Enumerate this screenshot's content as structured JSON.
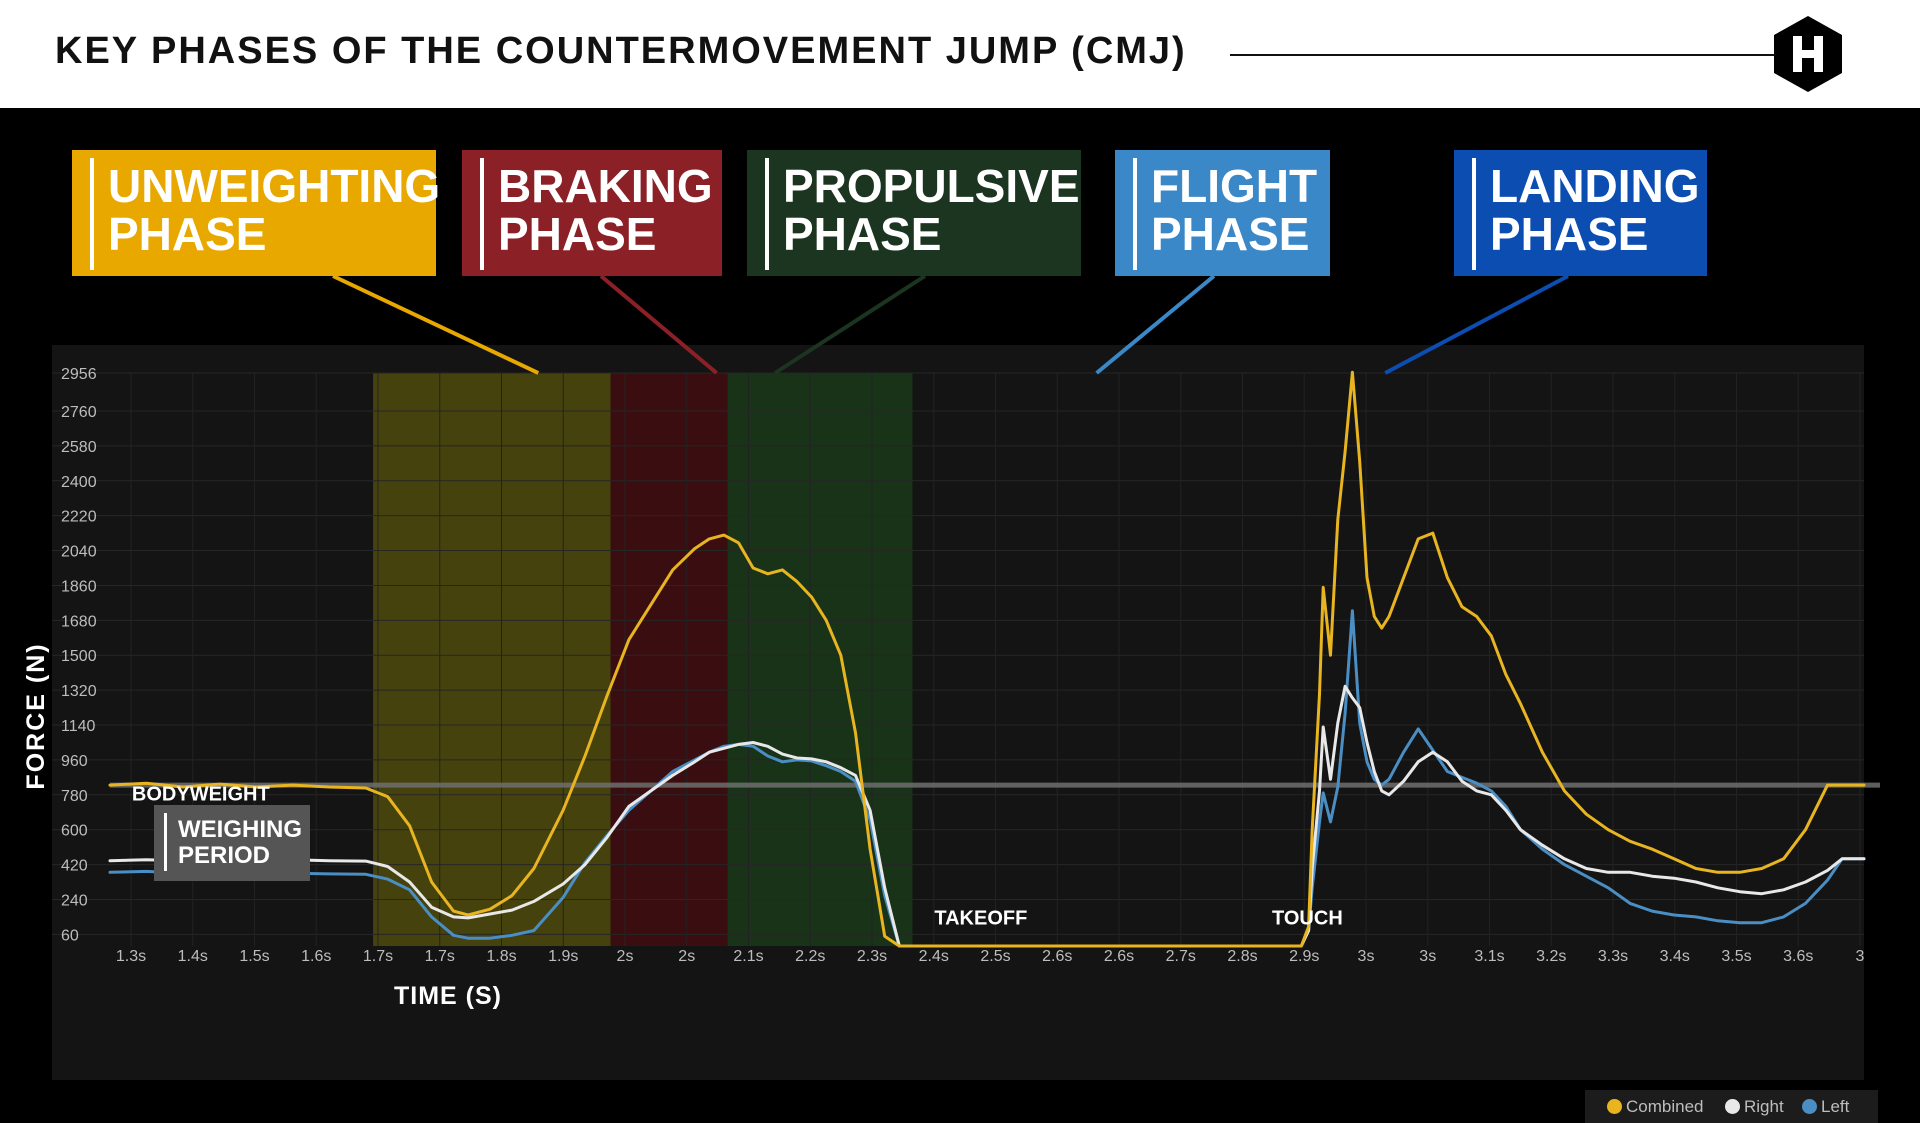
{
  "header": {
    "title": "KEY PHASES OF THE COUNTERMOVEMENT JUMP (CMJ)",
    "logo_icon": "hexagon-h-logo"
  },
  "phases": [
    {
      "label_line1": "UNWEIGHTING",
      "label_line2": "PHASE",
      "color": "#E8A800"
    },
    {
      "label_line1": "BRAKING",
      "label_line2": "PHASE",
      "color": "#8B2126"
    },
    {
      "label_line1": "PROPULSIVE",
      "label_line2": "PHASE",
      "color": "#1C3520"
    },
    {
      "label_line1": "FLIGHT",
      "label_line2": "PHASE",
      "color": "#3A88C8"
    },
    {
      "label_line1": "LANDING",
      "label_line2": "PHASE",
      "color": "#0B4DB0"
    }
  ],
  "weighing": {
    "line1": "WEIGHING",
    "line2": "PERIOD"
  },
  "legend": {
    "combined": "Combined",
    "right": "Right",
    "left": "Left"
  },
  "colors": {
    "combined": "#E8B520",
    "right": "#E8E8E8",
    "left": "#4A8EC4"
  },
  "chart_data": {
    "type": "line",
    "ylabel": "FORCE (N)",
    "xlabel": "TIME (S)",
    "ylim": [
      0,
      2956
    ],
    "y_ticks": [
      60,
      240,
      420,
      600,
      780,
      960,
      1140,
      1320,
      1500,
      1680,
      1860,
      2040,
      2220,
      2400,
      2580,
      2760,
      2956
    ],
    "x_ticks": [
      "1.3s",
      "1.4s",
      "1.5s",
      "1.6s",
      "1.7s",
      "1.7s",
      "1.8s",
      "1.9s",
      "2s",
      "2s",
      "2.1s",
      "2.2s",
      "2.3s",
      "2.4s",
      "2.5s",
      "2.6s",
      "2.6s",
      "2.7s",
      "2.8s",
      "2.9s",
      "3s",
      "3s",
      "3.1s",
      "3.2s",
      "3.3s",
      "3.4s",
      "3.5s",
      "3.6s",
      "3"
    ],
    "x_range": [
      1.25,
      3.65
    ],
    "bodyweight": 830,
    "annotations": [
      {
        "text": "BODYWEIGHT",
        "x": 1.28,
        "y": 700
      },
      {
        "text": "TAKEOFF",
        "x": 2.378,
        "y": 60
      },
      {
        "text": "TOUCH",
        "x": 2.84,
        "y": 60
      }
    ],
    "phase_regions": [
      {
        "name": "Unweighting",
        "start": 1.61,
        "end": 1.935,
        "color": "#45420E"
      },
      {
        "name": "Braking",
        "start": 1.935,
        "end": 2.095,
        "color": "#3A0D10"
      },
      {
        "name": "Propulsive",
        "start": 2.095,
        "end": 2.348,
        "color": "#183318"
      }
    ],
    "series": [
      {
        "name": "Combined",
        "color": "#E8B520",
        "x": [
          1.25,
          1.3,
          1.35,
          1.4,
          1.45,
          1.5,
          1.55,
          1.6,
          1.63,
          1.66,
          1.69,
          1.72,
          1.74,
          1.77,
          1.8,
          1.83,
          1.87,
          1.9,
          1.93,
          1.96,
          1.99,
          2.02,
          2.05,
          2.07,
          2.09,
          2.11,
          2.13,
          2.15,
          2.17,
          2.19,
          2.21,
          2.23,
          2.25,
          2.27,
          2.29,
          2.31,
          2.33,
          2.34,
          2.35,
          2.37,
          2.4,
          2.5,
          2.6,
          2.7,
          2.8,
          2.85,
          2.88,
          2.89,
          2.895,
          2.905,
          2.91,
          2.92,
          2.93,
          2.94,
          2.95,
          2.96,
          2.97,
          2.98,
          2.99,
          3.0,
          3.02,
          3.04,
          3.06,
          3.08,
          3.1,
          3.12,
          3.14,
          3.16,
          3.18,
          3.21,
          3.24,
          3.27,
          3.3,
          3.33,
          3.36,
          3.39,
          3.42,
          3.45,
          3.48,
          3.51,
          3.54,
          3.57,
          3.6,
          3.62,
          3.65
        ],
        "y": [
          830,
          840,
          820,
          835,
          820,
          830,
          820,
          815,
          770,
          620,
          330,
          180,
          160,
          190,
          260,
          400,
          700,
          980,
          1290,
          1580,
          1760,
          1940,
          2050,
          2100,
          2120,
          2080,
          1950,
          1920,
          1940,
          1880,
          1800,
          1680,
          1500,
          1100,
          500,
          50,
          0,
          0,
          0,
          0,
          0,
          0,
          0,
          0,
          0,
          0,
          0,
          100,
          600,
          1300,
          1850,
          1500,
          2200,
          2550,
          2960,
          2500,
          1900,
          1700,
          1640,
          1700,
          1900,
          2100,
          2130,
          1900,
          1750,
          1700,
          1600,
          1400,
          1250,
          1000,
          800,
          680,
          600,
          540,
          500,
          450,
          400,
          380,
          380,
          400,
          450,
          600,
          830,
          830,
          830
        ]
      },
      {
        "name": "Right",
        "color": "#E8E8E8",
        "x": [
          1.25,
          1.3,
          1.35,
          1.4,
          1.45,
          1.5,
          1.55,
          1.6,
          1.63,
          1.66,
          1.69,
          1.72,
          1.74,
          1.77,
          1.8,
          1.83,
          1.87,
          1.9,
          1.93,
          1.96,
          1.99,
          2.02,
          2.05,
          2.07,
          2.09,
          2.11,
          2.13,
          2.15,
          2.17,
          2.19,
          2.21,
          2.23,
          2.25,
          2.27,
          2.29,
          2.31,
          2.33,
          2.34,
          2.35,
          2.37,
          2.4,
          2.5,
          2.6,
          2.7,
          2.8,
          2.85,
          2.88,
          2.89,
          2.895,
          2.905,
          2.91,
          2.92,
          2.93,
          2.94,
          2.95,
          2.96,
          2.97,
          2.98,
          2.99,
          3.0,
          3.02,
          3.04,
          3.06,
          3.08,
          3.1,
          3.12,
          3.14,
          3.16,
          3.18,
          3.21,
          3.24,
          3.27,
          3.3,
          3.33,
          3.36,
          3.39,
          3.42,
          3.45,
          3.48,
          3.51,
          3.54,
          3.57,
          3.6,
          3.62,
          3.65
        ],
        "y": [
          440,
          445,
          440,
          448,
          440,
          445,
          440,
          438,
          410,
          330,
          200,
          150,
          145,
          165,
          185,
          230,
          320,
          420,
          560,
          720,
          800,
          880,
          950,
          1000,
          1020,
          1040,
          1050,
          1030,
          990,
          970,
          965,
          950,
          920,
          880,
          700,
          300,
          0,
          0,
          0,
          0,
          0,
          0,
          0,
          0,
          0,
          0,
          0,
          80,
          400,
          800,
          1130,
          860,
          1150,
          1340,
          1280,
          1230,
          1050,
          900,
          800,
          780,
          850,
          950,
          1000,
          950,
          850,
          800,
          780,
          700,
          600,
          520,
          450,
          400,
          380,
          380,
          360,
          350,
          330,
          300,
          280,
          270,
          290,
          330,
          390,
          450,
          450
        ]
      },
      {
        "name": "Left",
        "color": "#4A8EC4",
        "x": [
          1.25,
          1.3,
          1.35,
          1.4,
          1.45,
          1.5,
          1.55,
          1.6,
          1.63,
          1.66,
          1.69,
          1.72,
          1.74,
          1.77,
          1.8,
          1.83,
          1.87,
          1.9,
          1.93,
          1.96,
          1.99,
          2.02,
          2.05,
          2.07,
          2.09,
          2.11,
          2.13,
          2.15,
          2.17,
          2.19,
          2.21,
          2.23,
          2.25,
          2.27,
          2.29,
          2.31,
          2.33,
          2.34,
          2.35,
          2.37,
          2.4,
          2.5,
          2.6,
          2.7,
          2.8,
          2.85,
          2.88,
          2.89,
          2.895,
          2.905,
          2.91,
          2.92,
          2.93,
          2.94,
          2.95,
          2.96,
          2.97,
          2.98,
          2.99,
          3.0,
          3.02,
          3.04,
          3.06,
          3.08,
          3.1,
          3.12,
          3.14,
          3.16,
          3.18,
          3.21,
          3.24,
          3.27,
          3.3,
          3.33,
          3.36,
          3.39,
          3.42,
          3.45,
          3.48,
          3.51,
          3.54,
          3.57,
          3.6,
          3.62,
          3.65
        ],
        "y": [
          380,
          385,
          375,
          380,
          370,
          375,
          372,
          370,
          345,
          290,
          150,
          55,
          40,
          40,
          55,
          80,
          250,
          430,
          570,
          700,
          800,
          900,
          960,
          1000,
          1030,
          1040,
          1030,
          980,
          950,
          960,
          955,
          930,
          900,
          850,
          650,
          260,
          0,
          0,
          0,
          0,
          0,
          0,
          0,
          0,
          0,
          0,
          0,
          80,
          300,
          640,
          790,
          640,
          820,
          1200,
          1730,
          1150,
          950,
          860,
          830,
          860,
          1000,
          1120,
          1010,
          900,
          870,
          840,
          800,
          720,
          600,
          500,
          420,
          360,
          300,
          220,
          180,
          160,
          150,
          130,
          120,
          120,
          150,
          220,
          340,
          450,
          450
        ]
      }
    ]
  }
}
